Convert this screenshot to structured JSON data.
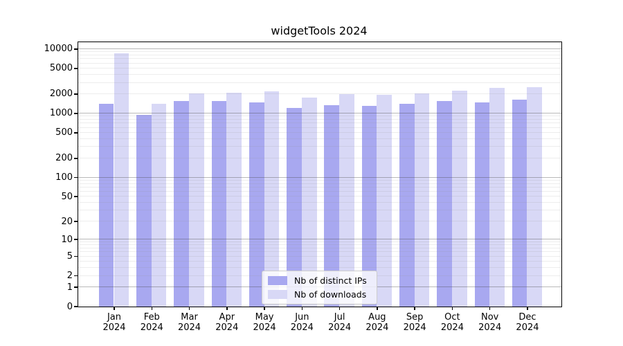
{
  "title": "widgetTools 2024",
  "chart_data": {
    "type": "bar",
    "title": "widgetTools 2024",
    "categories": [
      "Jan 2024",
      "Feb 2024",
      "Mar 2024",
      "Apr 2024",
      "May 2024",
      "Jun 2024",
      "Jul 2024",
      "Aug 2024",
      "Sep 2024",
      "Oct 2024",
      "Nov 2024",
      "Dec 2024"
    ],
    "series": [
      {
        "name": "Nb of distinct IPs",
        "color": "#a8a8f0",
        "values": [
          1380,
          950,
          1550,
          1550,
          1480,
          1190,
          1340,
          1310,
          1380,
          1560,
          1480,
          1630
        ]
      },
      {
        "name": "Nb of downloads",
        "color": "#d8d8f6",
        "values": [
          8600,
          1380,
          2050,
          2100,
          2200,
          1760,
          1960,
          1950,
          2050,
          2260,
          2440,
          2500
        ]
      }
    ],
    "xlabel": "",
    "ylabel": "",
    "yscale": "log10(1+x)",
    "ylim": [
      0,
      12800
    ],
    "y_ticks": [
      0,
      1,
      2,
      5,
      10,
      20,
      50,
      100,
      200,
      500,
      1000,
      2000,
      5000,
      10000
    ],
    "grid": "horizontal, minor log lines",
    "legend_position": "lower center"
  }
}
